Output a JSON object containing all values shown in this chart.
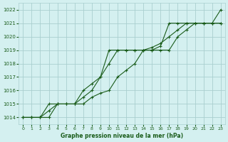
{
  "title": "Graphe pression niveau de la mer (hPa)",
  "background_color": "#d4f0f0",
  "grid_color": "#aacfcf",
  "line_color": "#1a5c1a",
  "x_hours": [
    0,
    1,
    2,
    3,
    4,
    5,
    6,
    7,
    8,
    9,
    10,
    11,
    12,
    13,
    14,
    15,
    16,
    17,
    18,
    19,
    20,
    21,
    22,
    23
  ],
  "series1": [
    1014.0,
    1014.0,
    1014.0,
    1015.0,
    1015.0,
    1015.0,
    1015.0,
    1016.0,
    1016.5,
    1017.0,
    1019.0,
    1019.0,
    1019.0,
    1019.0,
    1019.0,
    1019.0,
    1019.3,
    1021.0,
    1021.0,
    1021.0,
    1021.0,
    1021.0,
    1021.0,
    1022.0
  ],
  "series2": [
    1014.0,
    1014.0,
    1014.0,
    1014.5,
    1015.0,
    1015.0,
    1015.0,
    1015.5,
    1016.0,
    1017.0,
    1018.0,
    1019.0,
    1019.0,
    1019.0,
    1019.0,
    1019.2,
    1019.5,
    1020.0,
    1020.5,
    1021.0,
    1021.0,
    1021.0,
    1021.0,
    1021.0
  ],
  "series3": [
    1014.0,
    1014.0,
    1014.0,
    1014.0,
    1015.0,
    1015.0,
    1015.0,
    1015.0,
    1015.5,
    1015.8,
    1016.0,
    1017.0,
    1017.5,
    1018.0,
    1019.0,
    1019.0,
    1019.0,
    1019.0,
    1020.0,
    1020.5,
    1021.0,
    1021.0,
    1021.0,
    1021.0
  ],
  "ylim_min": 1013.5,
  "ylim_max": 1022.5,
  "yticks": [
    1014,
    1015,
    1016,
    1017,
    1018,
    1019,
    1020,
    1021,
    1022
  ],
  "xticks": [
    0,
    1,
    2,
    3,
    4,
    5,
    6,
    7,
    8,
    9,
    10,
    11,
    12,
    13,
    14,
    15,
    16,
    17,
    18,
    19,
    20,
    21,
    22,
    23
  ]
}
